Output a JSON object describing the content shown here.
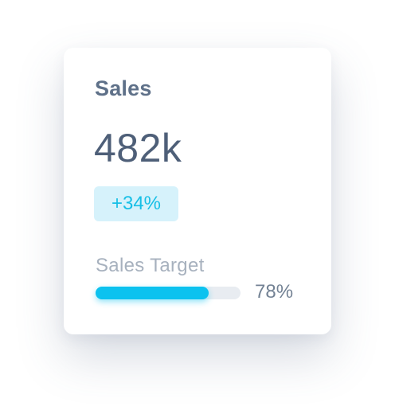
{
  "card": {
    "title": "Sales",
    "value": "482k",
    "change": "+34%",
    "target_label": "Sales Target",
    "target_progress_percent": 78,
    "target_progress_text": "78%"
  },
  "colors": {
    "title": "#5f7189",
    "value": "#4e5f78",
    "badge_background": "#d6f2fb",
    "badge_text": "#17bfe6",
    "progress_fill": "#0cc2ef",
    "progress_track": "#e8ecf1",
    "muted_text": "#a7b1be"
  }
}
